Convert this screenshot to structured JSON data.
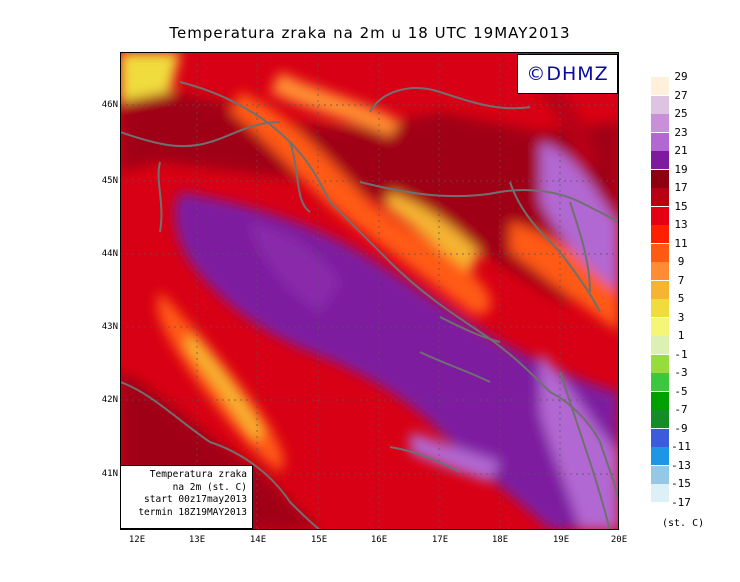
{
  "title": "Temperatura zraka na 2m u 18 UTC 19MAY2013",
  "logo": "©DHMZ",
  "info": {
    "line1": "Temperatura zraka",
    "line2": "na 2m (st. C)",
    "line3": "start 00z17may2013",
    "line4": "termin 18Z19MAY2013"
  },
  "lat_labels": [
    "46N",
    "45N",
    "44N",
    "43N",
    "42N",
    "41N"
  ],
  "lon_labels": [
    "12E",
    "13E",
    "14E",
    "15E",
    "16E",
    "17E",
    "18E",
    "19E",
    "20E"
  ],
  "legend": {
    "labels": [
      "29",
      "27",
      "25",
      "23",
      "21",
      "19",
      "17",
      "15",
      "13",
      "11",
      "9",
      "7",
      "5",
      "3",
      "1",
      "-1",
      "-3",
      "-5",
      "-7",
      "-9",
      "-11",
      "-13",
      "-15",
      "-17"
    ],
    "colors": [
      "#fff0dc",
      "#dfc3e3",
      "#c98fd9",
      "#b267d2",
      "#7e1aa0",
      "#8c0010",
      "#b80012",
      "#e60014",
      "#ff1e00",
      "#ff5a12",
      "#ff8c32",
      "#f5b432",
      "#f0dc3c",
      "#f5f578",
      "#dcf0b4",
      "#96dc3c",
      "#3cc83c",
      "#00a000",
      "#148c28",
      "#3c5adc",
      "#1e96e6",
      "#96c8e6",
      "#dcf0f5"
    ],
    "units": "(st. C)"
  }
}
